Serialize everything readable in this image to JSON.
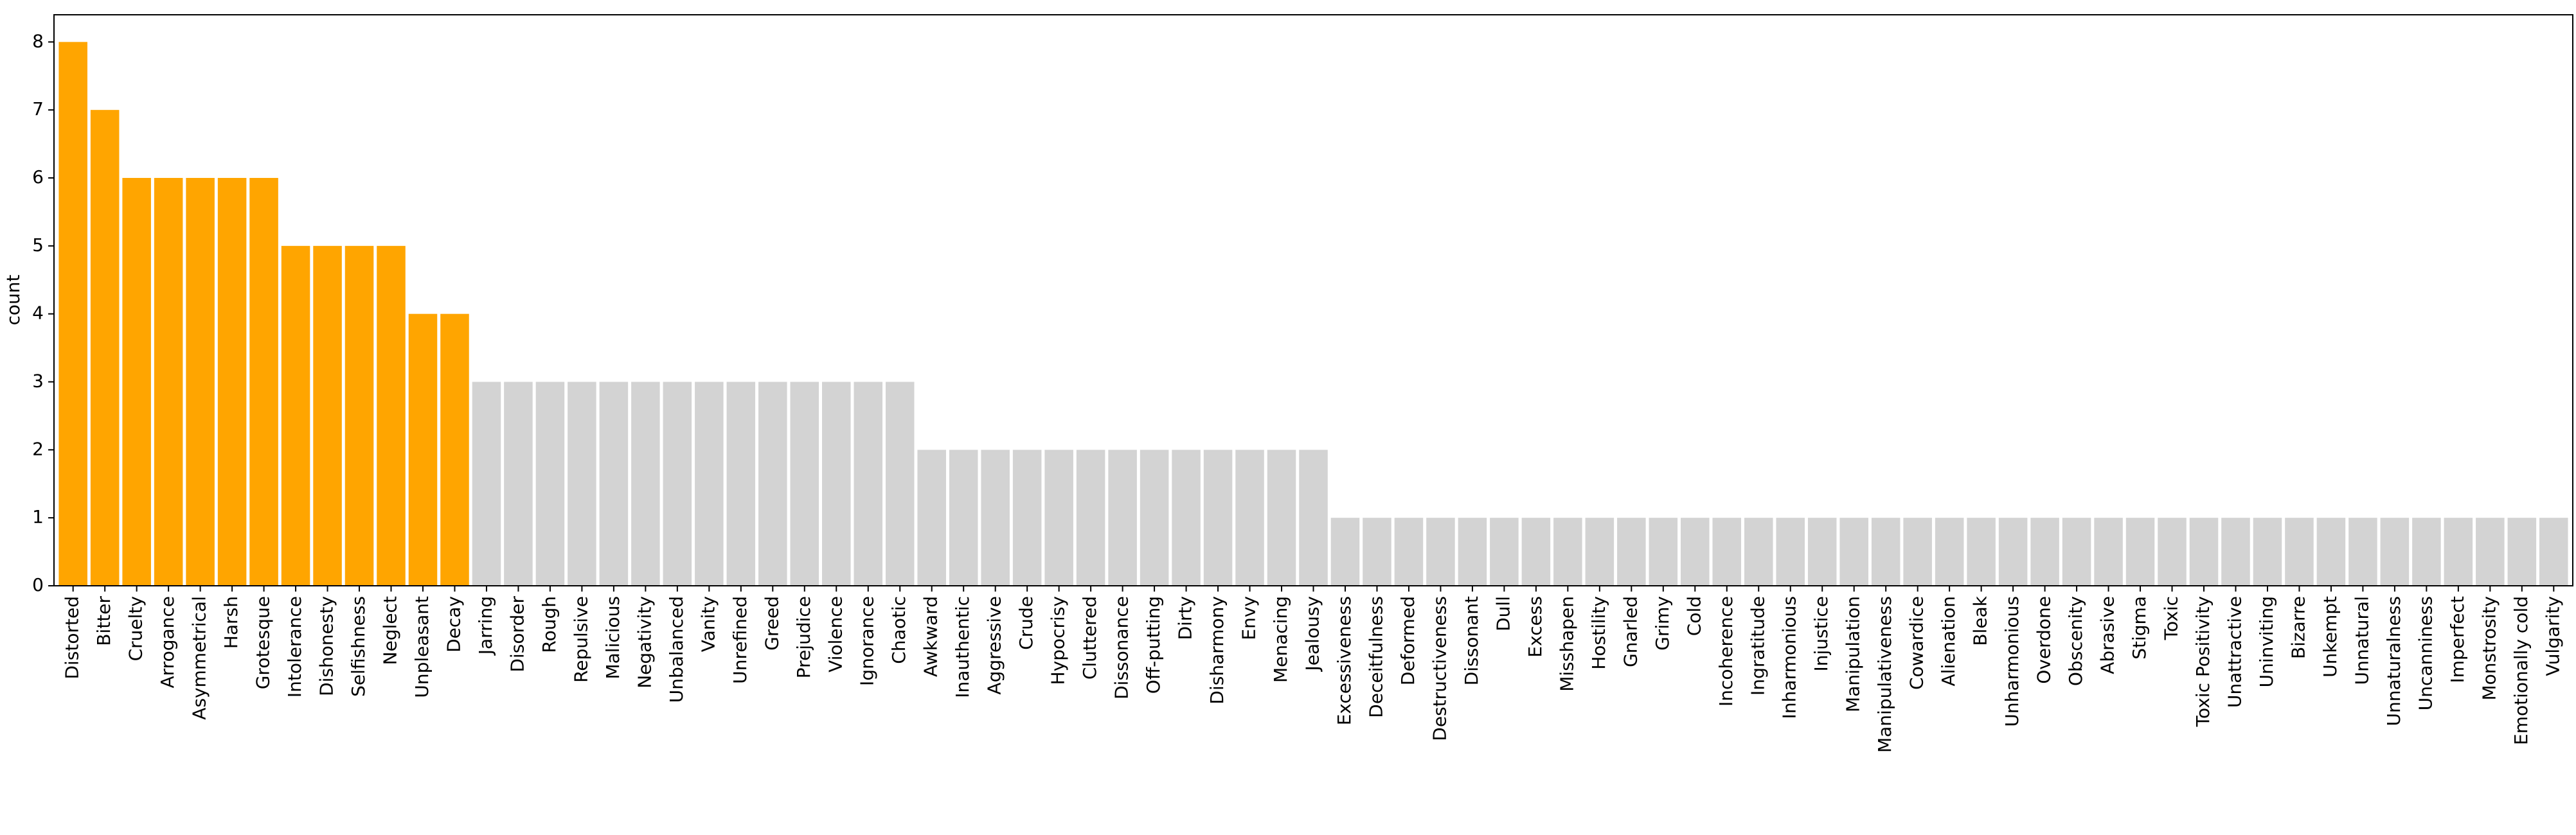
{
  "chart_data": {
    "type": "bar",
    "y_label": "count",
    "categories": [
      "Distorted",
      "Bitter",
      "Cruelty",
      "Arrogance",
      "Asymmetrical",
      "Harsh",
      "Grotesque",
      "Intolerance",
      "Dishonesty",
      "Selfishness",
      "Neglect",
      "Unpleasant",
      "Decay",
      "Jarring",
      "Disorder",
      "Rough",
      "Repulsive",
      "Malicious",
      "Negativity",
      "Unbalanced",
      "Vanity",
      "Unrefined",
      "Greed",
      "Prejudice",
      "Violence",
      "Ignorance",
      "Chaotic",
      "Awkward",
      "Inauthentic",
      "Aggressive",
      "Crude",
      "Hypocrisy",
      "Cluttered",
      "Dissonance",
      "Off-putting",
      "Dirty",
      "Disharmony",
      "Envy",
      "Menacing",
      "Jealousy",
      "Excessiveness",
      "Deceitfulness",
      "Deformed",
      "Destructiveness",
      "Dissonant",
      "Dull",
      "Excess",
      "Misshapen",
      "Hostility",
      "Gnarled",
      "Grimy",
      "Cold",
      "Incoherence",
      "Ingratitude",
      "Inharmonious",
      "Injustice",
      "Manipulation",
      "Manipulativeness",
      "Cowardice",
      "Alienation",
      "Bleak",
      "Unharmonious",
      "Overdone",
      "Obscenity",
      "Abrasive",
      "Stigma",
      "Toxic",
      "Toxic Positivity",
      "Unattractive",
      "Uninviting",
      "Bizarre",
      "Unkempt",
      "Unnatural",
      "Unnaturalness",
      "Uncanniness",
      "Imperfect",
      "Monstrosity",
      "Emotionally cold",
      "Vulgarity"
    ],
    "values": [
      8,
      7,
      6,
      6,
      6,
      6,
      6,
      5,
      5,
      5,
      5,
      4,
      4,
      3,
      3,
      3,
      3,
      3,
      3,
      3,
      3,
      3,
      3,
      3,
      3,
      3,
      3,
      2,
      2,
      2,
      2,
      2,
      2,
      2,
      2,
      2,
      2,
      2,
      2,
      2,
      1,
      1,
      1,
      1,
      1,
      1,
      1,
      1,
      1,
      1,
      1,
      1,
      1,
      1,
      1,
      1,
      1,
      1,
      1,
      1,
      1,
      1,
      1,
      1,
      1,
      1,
      1,
      1,
      1,
      1,
      1,
      1,
      1,
      1,
      1,
      1,
      1,
      1,
      1
    ],
    "colors": [
      "#ffa500",
      "#ffa500",
      "#ffa500",
      "#ffa500",
      "#ffa500",
      "#ffa500",
      "#ffa500",
      "#ffa500",
      "#ffa500",
      "#ffa500",
      "#ffa500",
      "#ffa500",
      "#ffa500",
      "#d3d3d3",
      "#d3d3d3",
      "#d3d3d3",
      "#d3d3d3",
      "#d3d3d3",
      "#d3d3d3",
      "#d3d3d3",
      "#d3d3d3",
      "#d3d3d3",
      "#d3d3d3",
      "#d3d3d3",
      "#d3d3d3",
      "#d3d3d3",
      "#d3d3d3",
      "#d3d3d3",
      "#d3d3d3",
      "#d3d3d3",
      "#d3d3d3",
      "#d3d3d3",
      "#d3d3d3",
      "#d3d3d3",
      "#d3d3d3",
      "#d3d3d3",
      "#d3d3d3",
      "#d3d3d3",
      "#d3d3d3",
      "#d3d3d3",
      "#d3d3d3",
      "#d3d3d3",
      "#d3d3d3",
      "#d3d3d3",
      "#d3d3d3",
      "#d3d3d3",
      "#d3d3d3",
      "#d3d3d3",
      "#d3d3d3",
      "#d3d3d3",
      "#d3d3d3",
      "#d3d3d3",
      "#d3d3d3",
      "#d3d3d3",
      "#d3d3d3",
      "#d3d3d3",
      "#d3d3d3",
      "#d3d3d3",
      "#d3d3d3",
      "#d3d3d3",
      "#d3d3d3",
      "#d3d3d3",
      "#d3d3d3",
      "#d3d3d3",
      "#d3d3d3",
      "#d3d3d3",
      "#d3d3d3",
      "#d3d3d3",
      "#d3d3d3",
      "#d3d3d3",
      "#d3d3d3",
      "#d3d3d3",
      "#d3d3d3",
      "#d3d3d3",
      "#d3d3d3",
      "#d3d3d3",
      "#d3d3d3",
      "#d3d3d3",
      "#d3d3d3"
    ],
    "ylim": [
      0,
      8.4
    ],
    "yticks": [
      0,
      1,
      2,
      3,
      4,
      5,
      6,
      7,
      8
    ],
    "grid": false
  }
}
